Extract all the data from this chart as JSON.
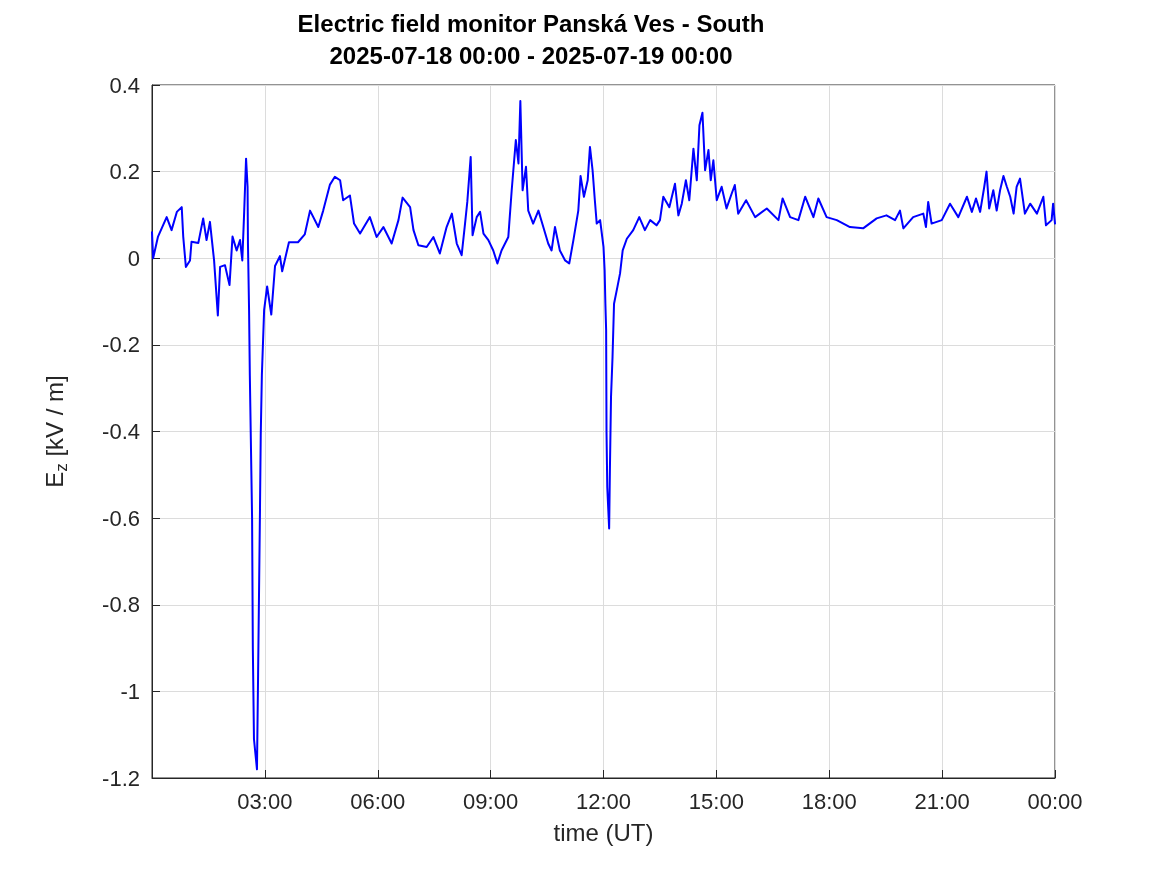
{
  "chart_data": {
    "type": "line",
    "title": "Electric field monitor Panská Ves - South",
    "subtitle": "2025-07-18 00:00 - 2025-07-19 00:00",
    "xlabel": "time (UT)",
    "ylabel": "E$_{z}$ [kV / m]",
    "xlim": [
      0,
      24
    ],
    "ylim": [
      -1.2,
      0.4
    ],
    "xticks": [
      {
        "value": 3,
        "label": "03:00"
      },
      {
        "value": 6,
        "label": "06:00"
      },
      {
        "value": 9,
        "label": "09:00"
      },
      {
        "value": 12,
        "label": "12:00"
      },
      {
        "value": 15,
        "label": "15:00"
      },
      {
        "value": 18,
        "label": "18:00"
      },
      {
        "value": 21,
        "label": "21:00"
      },
      {
        "value": 24,
        "label": "00:00"
      }
    ],
    "yticks": [
      -1.2,
      -1,
      -0.8,
      -0.6,
      -0.4,
      -0.2,
      0,
      0.2,
      0.4
    ],
    "grid": true,
    "marker": "none",
    "line_style": "solid",
    "series": [
      {
        "color": "#0000ff",
        "x": [
          0,
          0.03,
          0.16,
          0.39,
          0.52,
          0.66,
          0.79,
          0.83,
          0.9,
          1.01,
          1.05,
          1.23,
          1.36,
          1.45,
          1.54,
          1.65,
          1.75,
          1.81,
          1.94,
          2.06,
          2.14,
          2.25,
          2.34,
          2.4,
          2.45,
          2.5,
          2.54,
          2.55,
          2.58,
          2.6,
          2.64,
          2.66,
          2.68,
          2.71,
          2.79,
          2.82,
          2.87,
          2.89,
          2.92,
          2.98,
          3.06,
          3.17,
          3.27,
          3.4,
          3.46,
          3.64,
          3.88,
          4.06,
          4.2,
          4.42,
          4.55,
          4.73,
          4.86,
          5,
          5.08,
          5.26,
          5.37,
          5.53,
          5.79,
          5.97,
          6.15,
          6.37,
          6.55,
          6.66,
          6.86,
          6.95,
          7.08,
          7.3,
          7.48,
          7.65,
          7.83,
          7.97,
          8.1,
          8.23,
          8.32,
          8.38,
          8.47,
          8.52,
          8.63,
          8.72,
          8.81,
          8.94,
          9.07,
          9.18,
          9.29,
          9.47,
          9.56,
          9.67,
          9.74,
          9.79,
          9.85,
          9.94,
          10,
          10.13,
          10.27,
          10.4,
          10.53,
          10.62,
          10.71,
          10.84,
          10.98,
          11.09,
          11.2,
          11.33,
          11.39,
          11.48,
          11.58,
          11.64,
          11.71,
          11.77,
          11.82,
          11.91,
          12,
          12.03,
          12.05,
          12.07,
          12.08,
          12.1,
          12.15,
          12.17,
          12.2,
          12.24,
          12.28,
          12.37,
          12.44,
          12.51,
          12.62,
          12.79,
          12.95,
          13.1,
          13.24,
          13.41,
          13.5,
          13.59,
          13.75,
          13.9,
          13.99,
          14.08,
          14.19,
          14.28,
          14.39,
          14.48,
          14.55,
          14.63,
          14.7,
          14.79,
          14.85,
          14.92,
          15.01,
          15.14,
          15.27,
          15.41,
          15.49,
          15.58,
          15.79,
          16.03,
          16.34,
          16.65,
          16.76,
          16.96,
          17.18,
          17.36,
          17.58,
          17.71,
          17.93,
          18.2,
          18.55,
          18.9,
          19.26,
          19.52,
          19.75,
          19.88,
          19.97,
          20.23,
          20.5,
          20.57,
          20.63,
          20.72,
          20.99,
          21.21,
          21.43,
          21.66,
          21.79,
          21.9,
          22.01,
          22.12,
          22.18,
          22.25,
          22.36,
          22.45,
          22.54,
          22.63,
          22.72,
          22.81,
          22.9,
          22.98,
          23.07,
          23.2,
          23.34,
          23.52,
          23.69,
          23.76,
          23.91,
          23.95,
          24
        ],
        "values": [
          0.06,
          0,
          0.05,
          0.095,
          0.065,
          0.107,
          0.118,
          0.05,
          -0.02,
          -0.005,
          0.038,
          0.035,
          0.092,
          0.042,
          0.084,
          -0.005,
          -0.132,
          -0.02,
          -0.016,
          -0.062,
          0.05,
          0.018,
          0.042,
          -0.005,
          0.107,
          0.23,
          0.165,
          0.035,
          -0.12,
          -0.27,
          -0.49,
          -0.6,
          -0.9,
          -1.11,
          -1.18,
          -0.96,
          -0.58,
          -0.41,
          -0.27,
          -0.12,
          -0.065,
          -0.13,
          -0.018,
          0.005,
          -0.03,
          0.037,
          0.037,
          0.055,
          0.11,
          0.072,
          0.11,
          0.17,
          0.188,
          0.18,
          0.134,
          0.145,
          0.08,
          0.057,
          0.095,
          0.049,
          0.072,
          0.034,
          0.088,
          0.14,
          0.118,
          0.065,
          0.03,
          0.026,
          0.049,
          0.011,
          0.072,
          0.103,
          0.034,
          0.007,
          0.08,
          0.13,
          0.234,
          0.053,
          0.095,
          0.107,
          0.057,
          0.042,
          0.018,
          -0.012,
          0.018,
          0.049,
          0.157,
          0.273,
          0.219,
          0.363,
          0.157,
          0.211,
          0.11,
          0.08,
          0.11,
          0.072,
          0.034,
          0.018,
          0.072,
          0.018,
          -0.005,
          -0.012,
          0.042,
          0.11,
          0.19,
          0.142,
          0.18,
          0.257,
          0.203,
          0.134,
          0.08,
          0.088,
          0.026,
          -0.028,
          -0.105,
          -0.166,
          -0.4,
          -0.528,
          -0.624,
          -0.49,
          -0.32,
          -0.228,
          -0.105,
          -0.066,
          -0.035,
          0.018,
          0.045,
          0.065,
          0.095,
          0.065,
          0.088,
          0.076,
          0.088,
          0.142,
          0.118,
          0.172,
          0.099,
          0.126,
          0.18,
          0.134,
          0.253,
          0.18,
          0.307,
          0.336,
          0.203,
          0.25,
          0.18,
          0.226,
          0.134,
          0.165,
          0.115,
          0.15,
          0.169,
          0.103,
          0.134,
          0.095,
          0.115,
          0.088,
          0.138,
          0.095,
          0.088,
          0.142,
          0.095,
          0.138,
          0.095,
          0.088,
          0.072,
          0.069,
          0.092,
          0.099,
          0.088,
          0.11,
          0.069,
          0.095,
          0.103,
          0.072,
          0.13,
          0.08,
          0.088,
          0.126,
          0.095,
          0.142,
          0.107,
          0.138,
          0.107,
          0.165,
          0.2,
          0.115,
          0.157,
          0.11,
          0.157,
          0.19,
          0.165,
          0.142,
          0.103,
          0.165,
          0.184,
          0.103,
          0.126,
          0.103,
          0.142,
          0.076,
          0.088,
          0.126,
          0.08
        ]
      }
    ]
  }
}
